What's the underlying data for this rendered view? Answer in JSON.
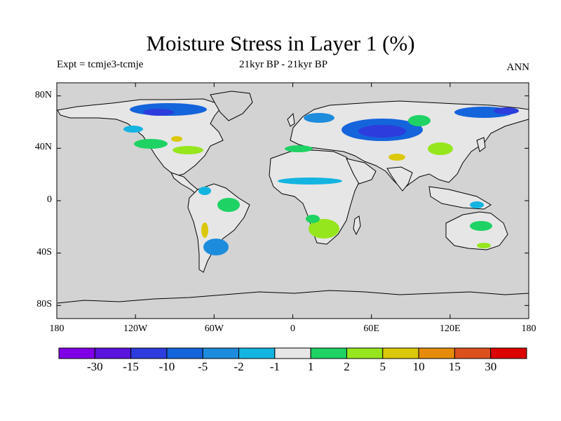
{
  "title": "Moisture Stress in Layer 1 (%)",
  "experiment_label": "Expt = tcmje3-tcmje",
  "period_label": "21kyr BP - 21kyr BP",
  "season_label": "ANN",
  "map": {
    "projection": "cylindrical equidistant",
    "lon_range": [
      -180,
      180
    ],
    "lat_range": [
      -90,
      90
    ],
    "ocean_color": "#d3d3d3",
    "coastline_color": "#000000",
    "y_ticks": [
      "80N",
      "40N",
      "0",
      "40S",
      "80S"
    ],
    "x_ticks": [
      "180",
      "120W",
      "60W",
      "0",
      "60E",
      "120E",
      "180"
    ]
  },
  "colorbar": {
    "colors": [
      "#7f00e5",
      "#5a14dc",
      "#2d3cdc",
      "#1464dc",
      "#1e8cdc",
      "#14b4e1",
      "#e6e6e6",
      "#1ed264",
      "#96e61e",
      "#dcc80a",
      "#e68c0a",
      "#dc501e",
      "#dc0000"
    ],
    "labels": [
      "-30",
      "-15",
      "-10",
      "-5",
      "-2",
      "-1",
      "1",
      "2",
      "5",
      "10",
      "15",
      "30"
    ]
  }
}
